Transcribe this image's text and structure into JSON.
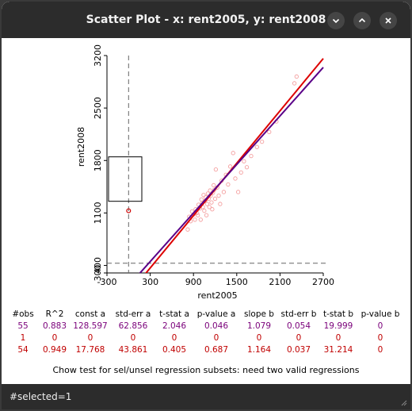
{
  "window": {
    "title": "Scatter Plot - x: rent2005, y: rent2008",
    "buttons": [
      "minimize",
      "maximize",
      "close"
    ]
  },
  "chart_data": {
    "type": "scatter",
    "xlabel": "rent2005",
    "ylabel": "rent2008",
    "xlim": [
      -300,
      2700
    ],
    "ylim": [
      300,
      3200
    ],
    "x_ticks": [
      "-300",
      "300",
      "900",
      "1500",
      "2100",
      "2700"
    ],
    "y_ticks": [
      "300",
      "400",
      "1100",
      "1800",
      "2500",
      "3200"
    ],
    "x_tick_values": [
      -300,
      300,
      900,
      1500,
      2100,
      2700
    ],
    "y_tick_values": [
      300,
      400,
      1100,
      1800,
      2500,
      3200
    ],
    "points": [
      {
        "x": 820,
        "y": 880
      },
      {
        "x": 840,
        "y": 1050
      },
      {
        "x": 860,
        "y": 990
      },
      {
        "x": 880,
        "y": 1120
      },
      {
        "x": 900,
        "y": 1080
      },
      {
        "x": 920,
        "y": 1010
      },
      {
        "x": 930,
        "y": 1150
      },
      {
        "x": 950,
        "y": 1100
      },
      {
        "x": 960,
        "y": 1070
      },
      {
        "x": 970,
        "y": 1210
      },
      {
        "x": 990,
        "y": 1160
      },
      {
        "x": 1000,
        "y": 1010
      },
      {
        "x": 1010,
        "y": 1280
      },
      {
        "x": 1020,
        "y": 1230
      },
      {
        "x": 1030,
        "y": 1180
      },
      {
        "x": 1040,
        "y": 1340
      },
      {
        "x": 1050,
        "y": 1130
      },
      {
        "x": 1060,
        "y": 1260
      },
      {
        "x": 1070,
        "y": 1310
      },
      {
        "x": 1080,
        "y": 1070
      },
      {
        "x": 1090,
        "y": 1220
      },
      {
        "x": 1100,
        "y": 1360
      },
      {
        "x": 1110,
        "y": 1290
      },
      {
        "x": 1120,
        "y": 1180
      },
      {
        "x": 1130,
        "y": 1400
      },
      {
        "x": 1140,
        "y": 1330
      },
      {
        "x": 1150,
        "y": 1240
      },
      {
        "x": 1160,
        "y": 1150
      },
      {
        "x": 1170,
        "y": 1370
      },
      {
        "x": 1180,
        "y": 1470
      },
      {
        "x": 1190,
        "y": 1410
      },
      {
        "x": 1200,
        "y": 1290
      },
      {
        "x": 1210,
        "y": 1680
      },
      {
        "x": 1230,
        "y": 1440
      },
      {
        "x": 1250,
        "y": 1330
      },
      {
        "x": 1270,
        "y": 1220
      },
      {
        "x": 1290,
        "y": 1530
      },
      {
        "x": 1320,
        "y": 1380
      },
      {
        "x": 1350,
        "y": 1610
      },
      {
        "x": 1380,
        "y": 1480
      },
      {
        "x": 1410,
        "y": 1720
      },
      {
        "x": 1450,
        "y": 1900
      },
      {
        "x": 1480,
        "y": 1560
      },
      {
        "x": 1520,
        "y": 1380
      },
      {
        "x": 1560,
        "y": 1640
      },
      {
        "x": 1600,
        "y": 1790
      },
      {
        "x": 1640,
        "y": 1710
      },
      {
        "x": 1700,
        "y": 1860
      },
      {
        "x": 1780,
        "y": 1980
      },
      {
        "x": 1850,
        "y": 2050
      },
      {
        "x": 1950,
        "y": 2180
      },
      {
        "x": 2050,
        "y": 2320
      },
      {
        "x": 2300,
        "y": 2830
      },
      {
        "x": 2330,
        "y": 2920
      }
    ],
    "selected_point": {
      "x": 0,
      "y": 1130
    },
    "regression_lines": [
      {
        "name": "all",
        "color": "#5a0088",
        "const": 128.597,
        "slope": 1.079
      },
      {
        "name": "unselected",
        "color": "#dd0000",
        "const": 17.768,
        "slope": 1.164
      }
    ],
    "colors": {
      "points": "#f4a0a0",
      "selected_point": "#cc0000"
    }
  },
  "stats": {
    "headers": [
      "#obs",
      "R^2",
      "const a",
      "std-err a",
      "t-stat a",
      "p-value a",
      "slope b",
      "std-err b",
      "t-stat b",
      "p-value b"
    ],
    "rows": [
      [
        "55",
        "0.883",
        "128.597",
        "62.856",
        "2.046",
        "0.046",
        "1.079",
        "0.054",
        "19.999",
        "0"
      ],
      [
        "1",
        "0",
        "0",
        "0",
        "0",
        "0",
        "0",
        "0",
        "0",
        "0"
      ],
      [
        "54",
        "0.949",
        "17.768",
        "43.861",
        "0.405",
        "0.687",
        "1.164",
        "0.037",
        "31.214",
        "0"
      ]
    ],
    "row_colors": [
      "#7a007a",
      "#c00000",
      "#c00000"
    ]
  },
  "chow_text": "Chow test for sel/unsel regression subsets: need two valid regressions",
  "status": "#selected=1"
}
